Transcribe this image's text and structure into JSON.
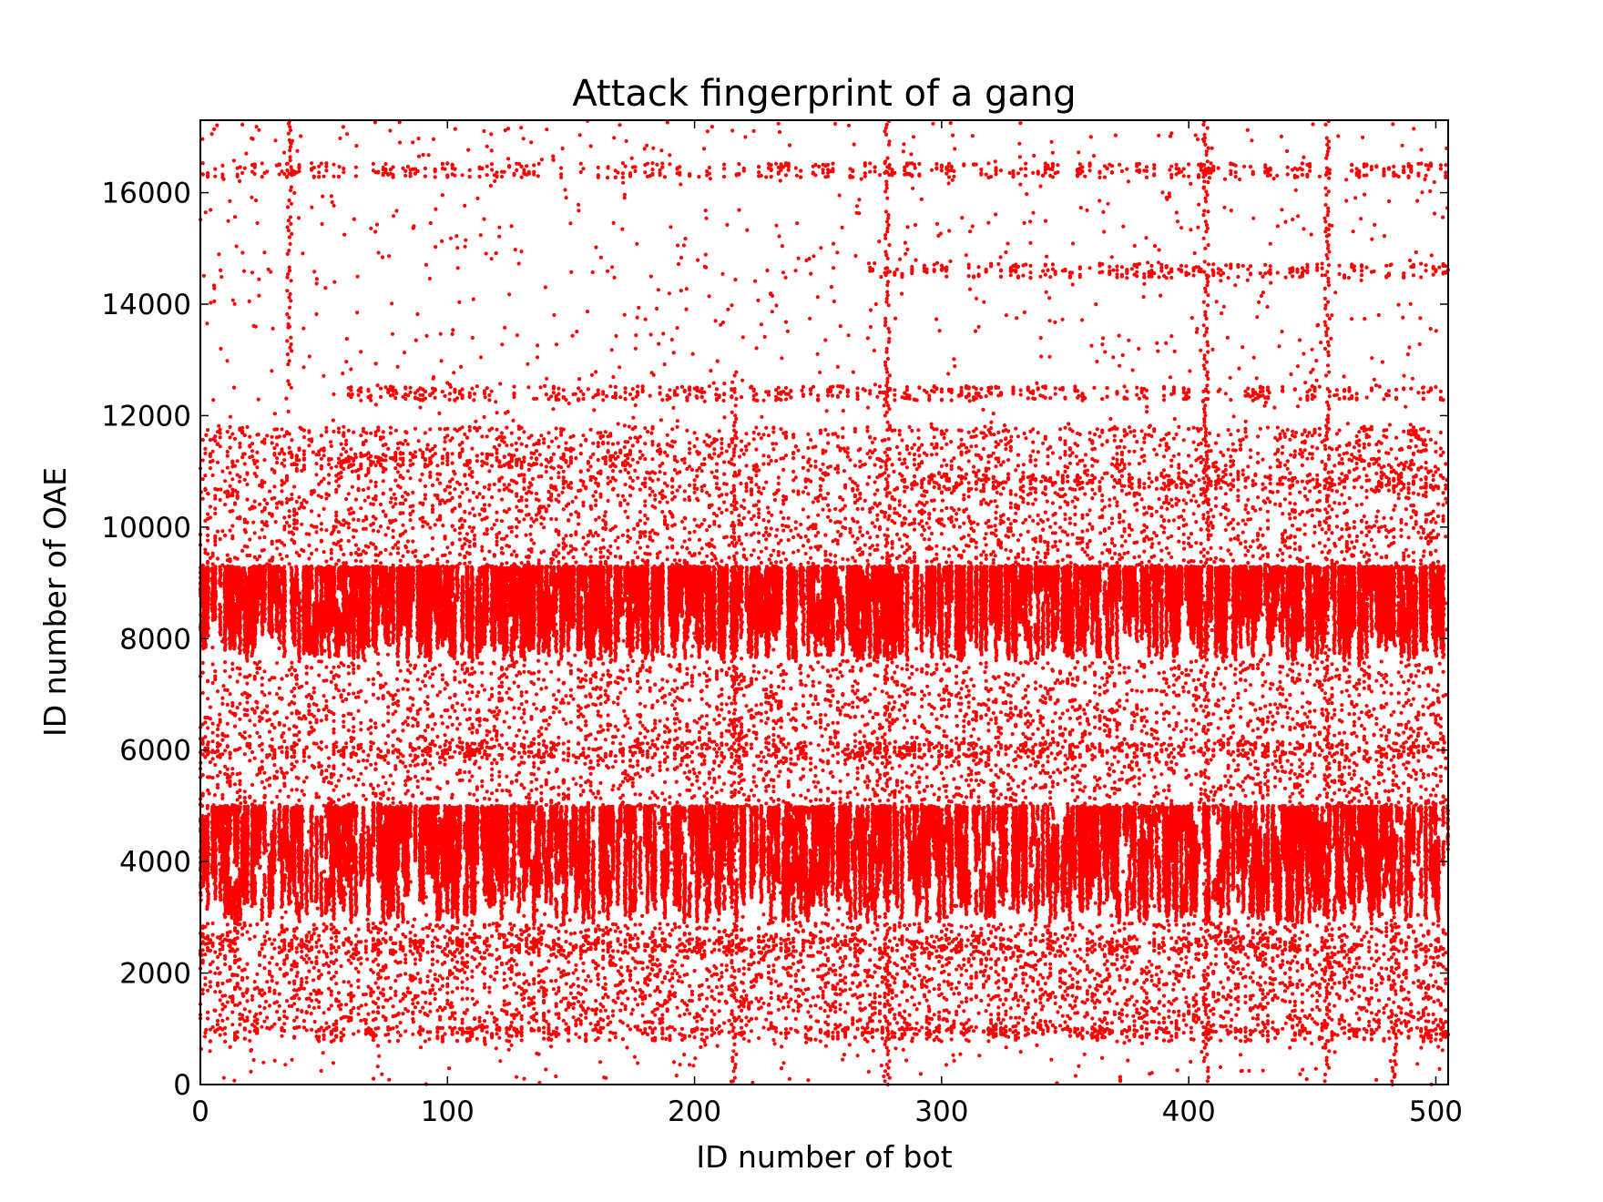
{
  "chart_data": {
    "type": "scatter",
    "title": "Attack fingerprint of a gang",
    "xlabel": "ID number of bot",
    "ylabel": "ID number of OAE",
    "xlim": [
      0,
      505
    ],
    "ylim": [
      0,
      17300
    ],
    "xticks": [
      0,
      100,
      200,
      300,
      400,
      500
    ],
    "yticks": [
      0,
      2000,
      4000,
      6000,
      8000,
      10000,
      12000,
      14000,
      16000
    ],
    "marker_color": "#ff0000",
    "grid": false,
    "legend": "none",
    "pattern": {
      "description_of_bands_in_data_units": true,
      "dense_bands": [
        {
          "y": [
            7600,
            9300
          ],
          "x": [
            0,
            505
          ]
        },
        {
          "y": [
            2900,
            5000
          ],
          "x": [
            0,
            505
          ]
        }
      ],
      "rows": [
        {
          "y": 2500,
          "x": [
            0,
            505
          ]
        },
        {
          "y": 900,
          "x": [
            0,
            505
          ]
        },
        {
          "y": 6000,
          "x": [
            0,
            505
          ]
        },
        {
          "y": 11200,
          "x": [
            30,
            175
          ]
        },
        {
          "y": 10800,
          "x": [
            280,
            505
          ]
        },
        {
          "y": 16400,
          "x": [
            0,
            505
          ]
        },
        {
          "y": 14600,
          "x": [
            270,
            505
          ]
        },
        {
          "y": 12400,
          "x": [
            60,
            505
          ]
        }
      ],
      "vertical_streaks": [
        {
          "x": 36,
          "y": [
            12500,
            17300
          ]
        },
        {
          "x": 216,
          "y": [
            0,
            12800
          ]
        },
        {
          "x": 278,
          "y": [
            0,
            17300
          ]
        },
        {
          "x": 407,
          "y": [
            0,
            17300
          ]
        },
        {
          "x": 456,
          "y": [
            0,
            17300
          ]
        },
        {
          "x": 483,
          "y": [
            0,
            3000
          ]
        }
      ]
    }
  }
}
